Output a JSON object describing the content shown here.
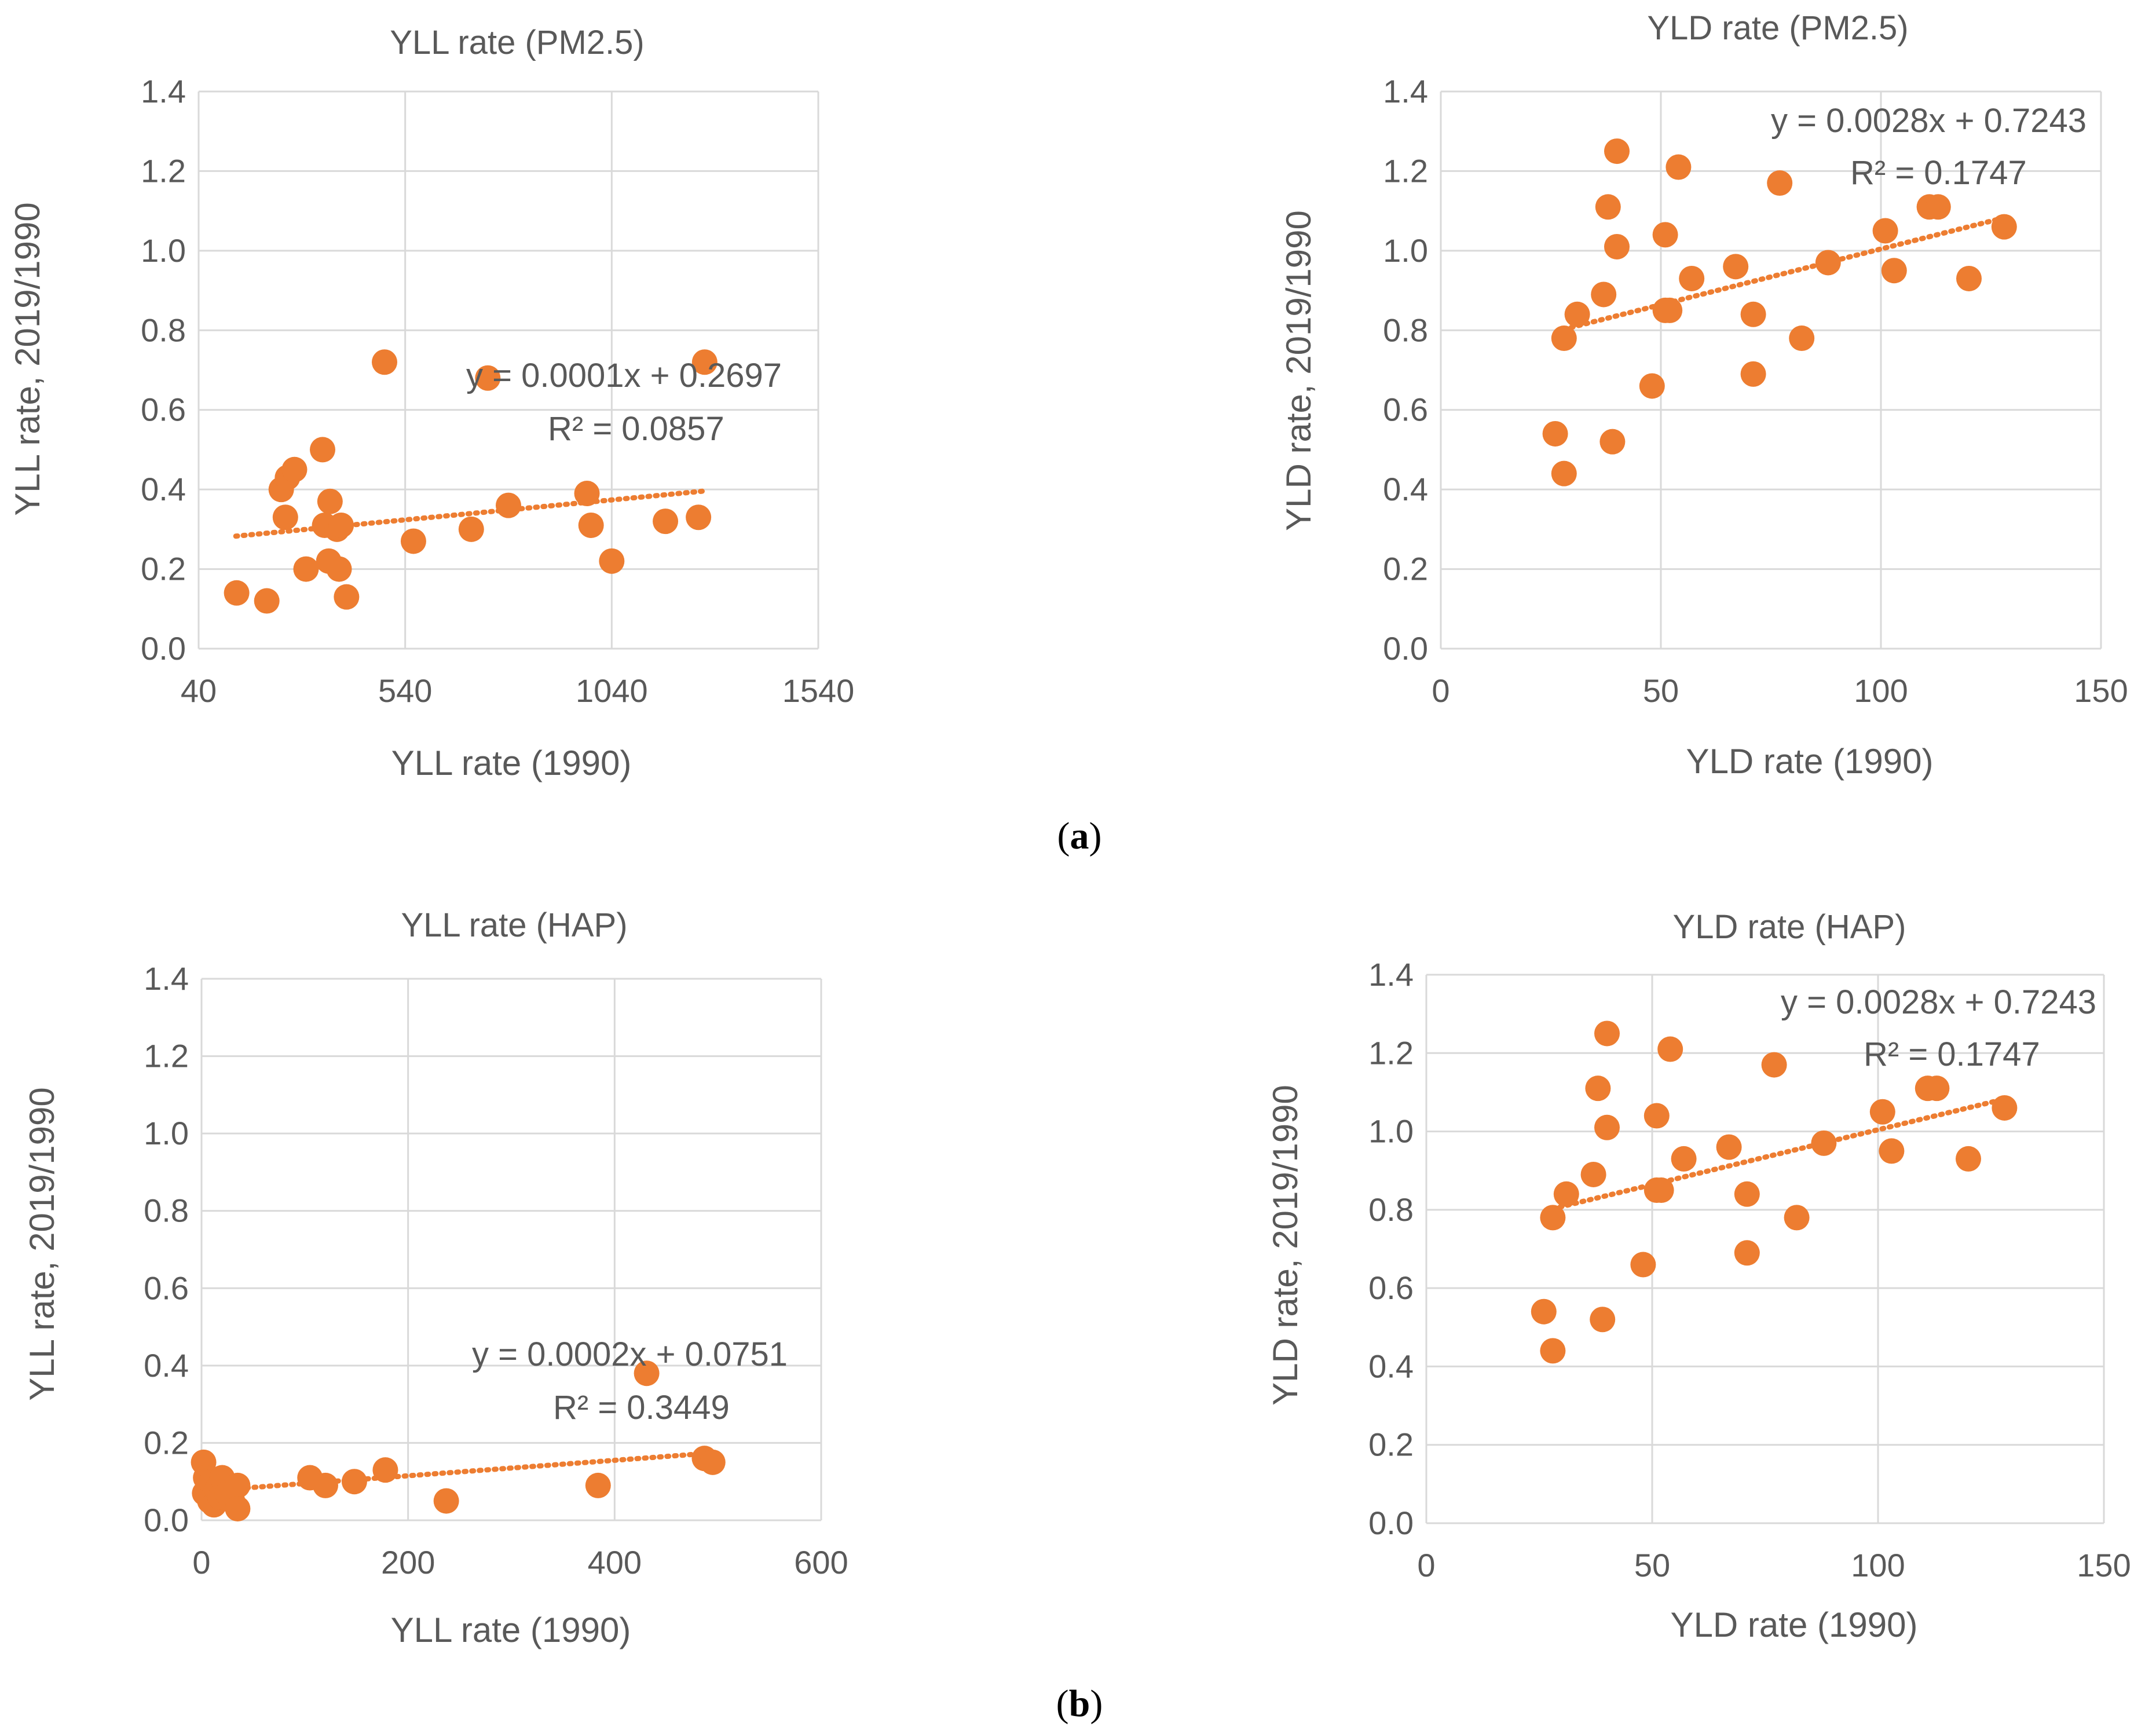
{
  "colors": {
    "marker": "#ED7D31",
    "trendline": "#ED7D31",
    "grid": "#D9D9D9",
    "text": "#595959"
  },
  "panels": {
    "a": {
      "open": "(",
      "letter": "a",
      "close": ")"
    },
    "b": {
      "open": "(",
      "letter": "b",
      "close": ")"
    }
  },
  "chart_data": [
    {
      "type": "scatter",
      "title": "YLL rate (PM2.5)",
      "xlabel": "YLL rate (1990)",
      "ylabel": "YLL rate, 2019/1990",
      "xlim": [
        40,
        1540
      ],
      "ylim": [
        0,
        1.4
      ],
      "xticks": [
        40,
        540,
        1040,
        1540
      ],
      "yticks": [
        0.0,
        0.2,
        0.4,
        0.6,
        0.8,
        1.0,
        1.2,
        1.4
      ],
      "grid": true,
      "legend": "none",
      "trendline": {
        "type": "linear",
        "slope": 0.0001,
        "intercept": 0.2697,
        "x_range": [
          130,
          1260
        ]
      },
      "equation": "y = 0.0001x + 0.2697",
      "r2": "R² = 0.0857",
      "x": [
        132,
        205,
        240,
        250,
        255,
        272,
        300,
        340,
        345,
        355,
        358,
        375,
        380,
        385,
        398,
        490,
        560,
        700,
        790,
        980,
        990,
        1040,
        1170,
        1250,
        1265,
        740
      ],
      "y": [
        0.14,
        0.12,
        0.4,
        0.33,
        0.43,
        0.45,
        0.2,
        0.5,
        0.31,
        0.22,
        0.37,
        0.3,
        0.2,
        0.31,
        0.13,
        0.72,
        0.27,
        0.3,
        0.36,
        0.39,
        0.31,
        0.22,
        0.32,
        0.33,
        0.72,
        0.68
      ]
    },
    {
      "type": "scatter",
      "title": "YLD rate (PM2.5)",
      "xlabel": "YLD rate (1990)",
      "ylabel": "YLD rate, 2019/1990",
      "xlim": [
        0,
        150
      ],
      "ylim": [
        0,
        1.4
      ],
      "xticks": [
        0,
        50,
        100,
        150
      ],
      "yticks": [
        0.0,
        0.2,
        0.4,
        0.6,
        0.8,
        1.0,
        1.2,
        1.4
      ],
      "grid": true,
      "legend": "none",
      "trendline": {
        "type": "linear",
        "slope": 0.0028,
        "intercept": 0.7243,
        "x_range": [
          28,
          128
        ]
      },
      "equation": "y = 0.0028x + 0.7243",
      "r2": "R² = 0.1747",
      "x": [
        26,
        28,
        28,
        31,
        37,
        38,
        39,
        40,
        40,
        48,
        51,
        51,
        52,
        54,
        57,
        67,
        71,
        71,
        77,
        82,
        88,
        101,
        103,
        111,
        113,
        120,
        128
      ],
      "y": [
        0.54,
        0.44,
        0.78,
        0.84,
        0.89,
        1.11,
        0.52,
        1.01,
        1.25,
        0.66,
        1.04,
        0.85,
        0.85,
        1.21,
        0.93,
        0.96,
        0.69,
        0.84,
        1.17,
        0.78,
        0.97,
        1.05,
        0.95,
        1.11,
        1.11,
        0.93,
        1.06
      ]
    },
    {
      "type": "scatter",
      "title": "YLL rate (HAP)",
      "xlabel": "YLL rate (1990)",
      "ylabel": "YLL rate, 2019/1990",
      "xlim": [
        0,
        600
      ],
      "ylim": [
        0,
        1.4
      ],
      "xticks": [
        0,
        200,
        400,
        600
      ],
      "yticks": [
        0.0,
        0.2,
        0.4,
        0.6,
        0.8,
        1.0,
        1.2,
        1.4
      ],
      "grid": true,
      "legend": "none",
      "trendline": {
        "type": "linear",
        "slope": 0.0002,
        "intercept": 0.0751,
        "x_range": [
          0,
          495
        ]
      },
      "equation": "y = 0.0002x + 0.0751",
      "r2": "R² = 0.3449",
      "x": [
        2,
        3,
        4,
        8,
        10,
        12,
        15,
        18,
        20,
        25,
        30,
        35,
        35,
        105,
        120,
        148,
        178,
        237,
        384,
        431,
        487,
        495
      ],
      "y": [
        0.15,
        0.07,
        0.11,
        0.05,
        0.1,
        0.04,
        0.08,
        0.06,
        0.11,
        0.07,
        0.05,
        0.09,
        0.03,
        0.11,
        0.09,
        0.1,
        0.13,
        0.05,
        0.09,
        0.38,
        0.16,
        0.15
      ]
    },
    {
      "type": "scatter",
      "title": "YLD rate (HAP)",
      "xlabel": "YLD rate (1990)",
      "ylabel": "YLD rate, 2019/1990",
      "xlim": [
        0,
        150
      ],
      "ylim": [
        0,
        1.4
      ],
      "xticks": [
        0,
        50,
        100,
        150
      ],
      "yticks": [
        0.0,
        0.2,
        0.4,
        0.6,
        0.8,
        1.0,
        1.2,
        1.4
      ],
      "grid": true,
      "legend": "none",
      "trendline": {
        "type": "linear",
        "slope": 0.0028,
        "intercept": 0.7243,
        "x_range": [
          28,
          128
        ]
      },
      "equation": "y = 0.0028x + 0.7243",
      "r2": "R² = 0.1747",
      "x": [
        26,
        28,
        28,
        31,
        37,
        38,
        39,
        40,
        40,
        48,
        51,
        51,
        52,
        54,
        57,
        67,
        71,
        71,
        77,
        82,
        88,
        101,
        103,
        111,
        113,
        120,
        128
      ],
      "y": [
        0.54,
        0.44,
        0.78,
        0.84,
        0.89,
        1.11,
        0.52,
        1.01,
        1.25,
        0.66,
        1.04,
        0.85,
        0.85,
        1.21,
        0.93,
        0.96,
        0.69,
        0.84,
        1.17,
        0.78,
        0.97,
        1.05,
        0.95,
        1.11,
        1.11,
        0.93,
        1.06
      ]
    }
  ]
}
